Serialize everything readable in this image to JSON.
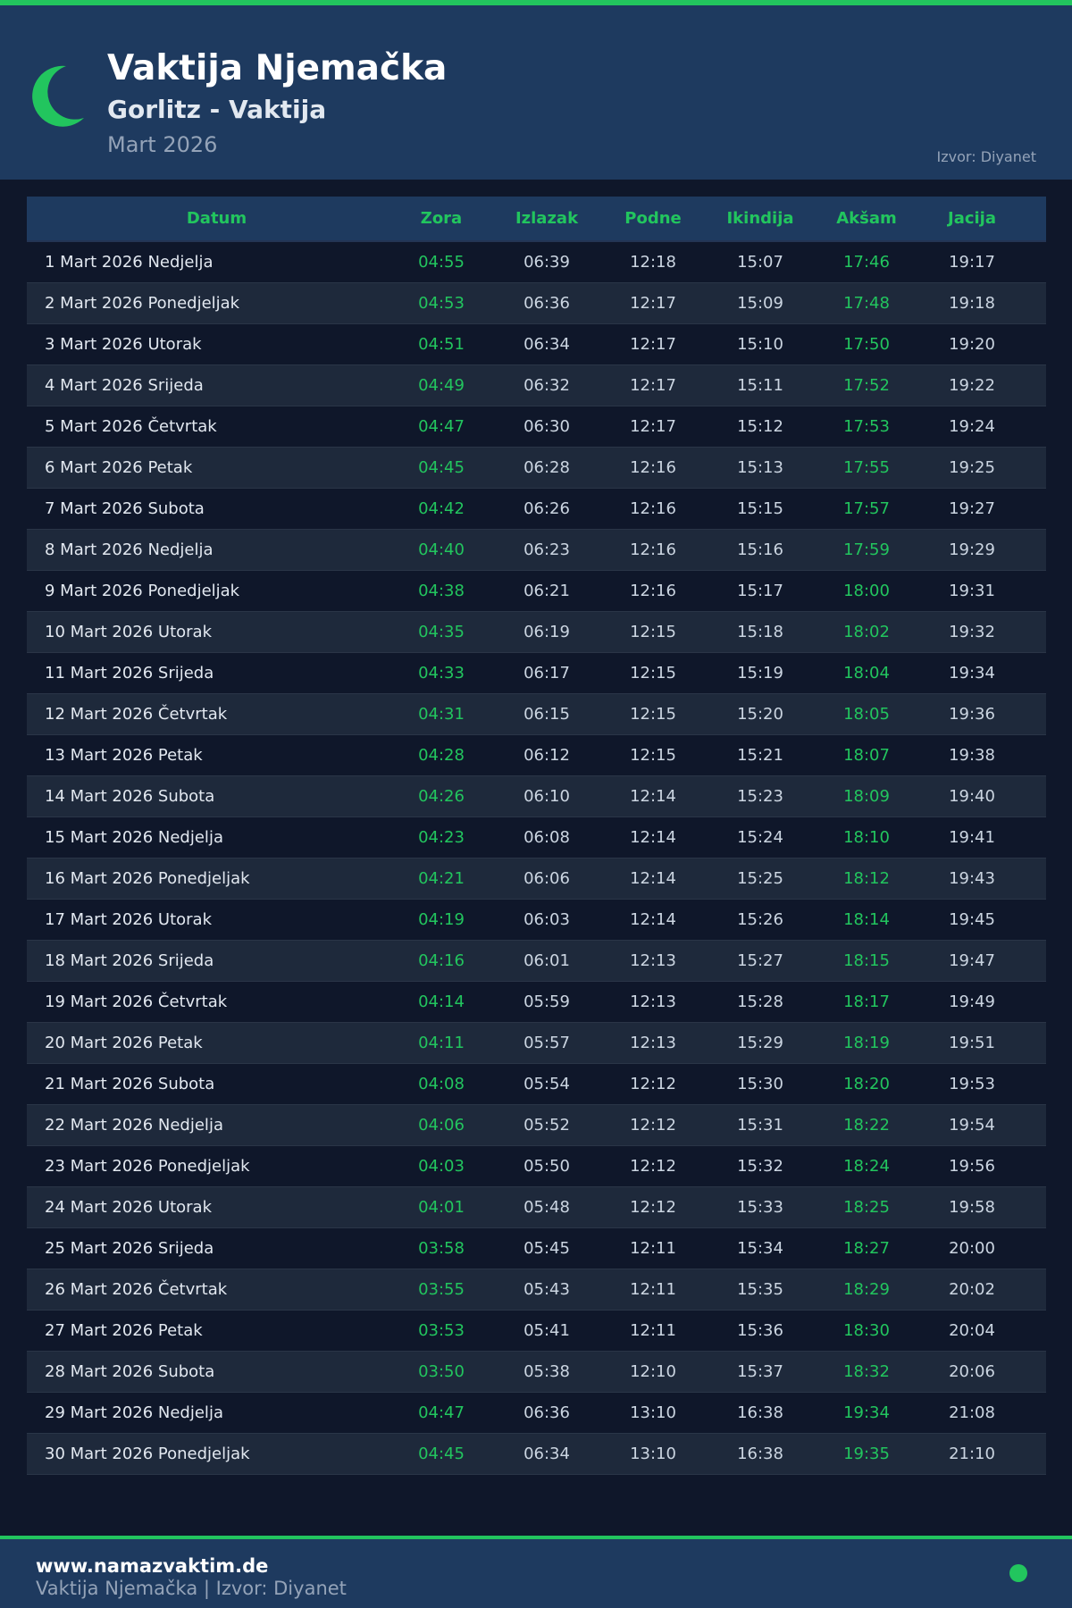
{
  "header": {
    "title": "Vaktija Njemačka",
    "subtitle": "Gorlitz - Vaktija",
    "month": "Mart 2026",
    "source": "Izvor: Diyanet"
  },
  "colors": {
    "accent": "#22c55e",
    "header_bg": "#1e3a5f",
    "page_bg": "#0f172a"
  },
  "icons": {
    "logo": "crescent-moon-icon",
    "status": "green-dot-icon"
  },
  "table": {
    "columns": [
      "Datum",
      "Zora",
      "Izlazak",
      "Podne",
      "Ikindija",
      "Akšam",
      "Jacija"
    ],
    "rows": [
      [
        "1 Mart 2026 Nedjelja",
        "04:55",
        "06:39",
        "12:18",
        "15:07",
        "17:46",
        "19:17"
      ],
      [
        "2 Mart 2026 Ponedjeljak",
        "04:53",
        "06:36",
        "12:17",
        "15:09",
        "17:48",
        "19:18"
      ],
      [
        "3 Mart 2026 Utorak",
        "04:51",
        "06:34",
        "12:17",
        "15:10",
        "17:50",
        "19:20"
      ],
      [
        "4 Mart 2026 Srijeda",
        "04:49",
        "06:32",
        "12:17",
        "15:11",
        "17:52",
        "19:22"
      ],
      [
        "5 Mart 2026 Četvrtak",
        "04:47",
        "06:30",
        "12:17",
        "15:12",
        "17:53",
        "19:24"
      ],
      [
        "6 Mart 2026 Petak",
        "04:45",
        "06:28",
        "12:16",
        "15:13",
        "17:55",
        "19:25"
      ],
      [
        "7 Mart 2026 Subota",
        "04:42",
        "06:26",
        "12:16",
        "15:15",
        "17:57",
        "19:27"
      ],
      [
        "8 Mart 2026 Nedjelja",
        "04:40",
        "06:23",
        "12:16",
        "15:16",
        "17:59",
        "19:29"
      ],
      [
        "9 Mart 2026 Ponedjeljak",
        "04:38",
        "06:21",
        "12:16",
        "15:17",
        "18:00",
        "19:31"
      ],
      [
        "10 Mart 2026 Utorak",
        "04:35",
        "06:19",
        "12:15",
        "15:18",
        "18:02",
        "19:32"
      ],
      [
        "11 Mart 2026 Srijeda",
        "04:33",
        "06:17",
        "12:15",
        "15:19",
        "18:04",
        "19:34"
      ],
      [
        "12 Mart 2026 Četvrtak",
        "04:31",
        "06:15",
        "12:15",
        "15:20",
        "18:05",
        "19:36"
      ],
      [
        "13 Mart 2026 Petak",
        "04:28",
        "06:12",
        "12:15",
        "15:21",
        "18:07",
        "19:38"
      ],
      [
        "14 Mart 2026 Subota",
        "04:26",
        "06:10",
        "12:14",
        "15:23",
        "18:09",
        "19:40"
      ],
      [
        "15 Mart 2026 Nedjelja",
        "04:23",
        "06:08",
        "12:14",
        "15:24",
        "18:10",
        "19:41"
      ],
      [
        "16 Mart 2026 Ponedjeljak",
        "04:21",
        "06:06",
        "12:14",
        "15:25",
        "18:12",
        "19:43"
      ],
      [
        "17 Mart 2026 Utorak",
        "04:19",
        "06:03",
        "12:14",
        "15:26",
        "18:14",
        "19:45"
      ],
      [
        "18 Mart 2026 Srijeda",
        "04:16",
        "06:01",
        "12:13",
        "15:27",
        "18:15",
        "19:47"
      ],
      [
        "19 Mart 2026 Četvrtak",
        "04:14",
        "05:59",
        "12:13",
        "15:28",
        "18:17",
        "19:49"
      ],
      [
        "20 Mart 2026 Petak",
        "04:11",
        "05:57",
        "12:13",
        "15:29",
        "18:19",
        "19:51"
      ],
      [
        "21 Mart 2026 Subota",
        "04:08",
        "05:54",
        "12:12",
        "15:30",
        "18:20",
        "19:53"
      ],
      [
        "22 Mart 2026 Nedjelja",
        "04:06",
        "05:52",
        "12:12",
        "15:31",
        "18:22",
        "19:54"
      ],
      [
        "23 Mart 2026 Ponedjeljak",
        "04:03",
        "05:50",
        "12:12",
        "15:32",
        "18:24",
        "19:56"
      ],
      [
        "24 Mart 2026 Utorak",
        "04:01",
        "05:48",
        "12:12",
        "15:33",
        "18:25",
        "19:58"
      ],
      [
        "25 Mart 2026 Srijeda",
        "03:58",
        "05:45",
        "12:11",
        "15:34",
        "18:27",
        "20:00"
      ],
      [
        "26 Mart 2026 Četvrtak",
        "03:55",
        "05:43",
        "12:11",
        "15:35",
        "18:29",
        "20:02"
      ],
      [
        "27 Mart 2026 Petak",
        "03:53",
        "05:41",
        "12:11",
        "15:36",
        "18:30",
        "20:04"
      ],
      [
        "28 Mart 2026 Subota",
        "03:50",
        "05:38",
        "12:10",
        "15:37",
        "18:32",
        "20:06"
      ],
      [
        "29 Mart 2026 Nedjelja",
        "04:47",
        "06:36",
        "13:10",
        "16:38",
        "19:34",
        "21:08"
      ],
      [
        "30 Mart 2026 Ponedjeljak",
        "04:45",
        "06:34",
        "13:10",
        "16:38",
        "19:35",
        "21:10"
      ]
    ]
  },
  "footer": {
    "site": "www.namazvaktim.de",
    "text": "Vaktija Njemačka | Izvor: Diyanet"
  }
}
